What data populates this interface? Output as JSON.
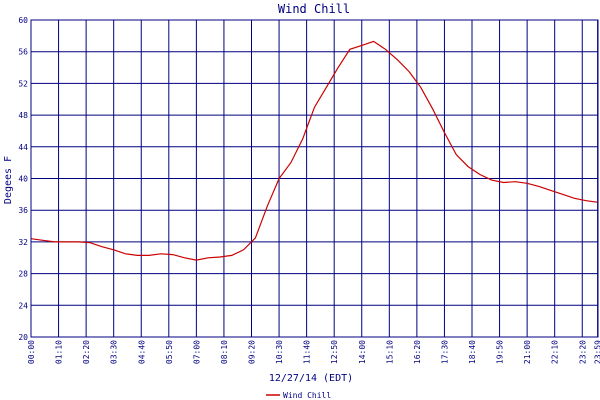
{
  "chart_data": {
    "type": "line",
    "title": "Wind Chill",
    "xlabel": "12/27/14 (EDT)",
    "ylabel": "Degees F",
    "ylim": [
      20,
      60
    ],
    "yticks": [
      "20",
      "24",
      "28",
      "32",
      "36",
      "40",
      "44",
      "48",
      "52",
      "56",
      "60"
    ],
    "xticks": [
      "00:00",
      "01:10",
      "02:20",
      "03:30",
      "04:40",
      "05:50",
      "07:00",
      "08:10",
      "09:20",
      "10:30",
      "11:40",
      "12:50",
      "14:00",
      "15:10",
      "16:20",
      "17:30",
      "18:40",
      "19:50",
      "21:00",
      "22:10",
      "23:20",
      "23:59"
    ],
    "grid": true,
    "legend_placement": "bottom-left",
    "colors": {
      "series": "#cc0000",
      "grid": "#000080",
      "text": "#000080"
    },
    "series": [
      {
        "name": "Wind Chill",
        "x_hours": [
          0,
          0.5,
          1,
          1.5,
          2,
          2.5,
          3,
          3.5,
          4,
          4.5,
          5,
          5.5,
          6,
          6.5,
          7,
          7.5,
          8,
          8.5,
          9,
          9.5,
          10,
          10.5,
          11,
          11.5,
          12,
          12.5,
          13,
          13.5,
          14,
          14.5,
          15,
          15.5,
          16,
          16.5,
          17,
          17.5,
          18,
          18.5,
          19,
          19.5,
          20,
          20.5,
          21,
          21.5,
          22,
          22.5,
          23,
          23.5,
          24
        ],
        "values": [
          32.4,
          32.2,
          32.0,
          32.0,
          32.0,
          31.9,
          31.4,
          31.0,
          30.5,
          30.3,
          30.3,
          30.5,
          30.4,
          30.0,
          29.7,
          30.0,
          30.1,
          30.3,
          31.0,
          32.5,
          36.5,
          40.0,
          42.0,
          45.0,
          49.0,
          51.5,
          54.0,
          56.3,
          56.8,
          57.3,
          56.3,
          55.0,
          53.5,
          51.5,
          48.8,
          45.8,
          43.0,
          41.5,
          40.5,
          39.8,
          39.5,
          39.6,
          39.4,
          39.0,
          38.5,
          38.0,
          37.5,
          37.2,
          37.0
        ]
      }
    ]
  }
}
